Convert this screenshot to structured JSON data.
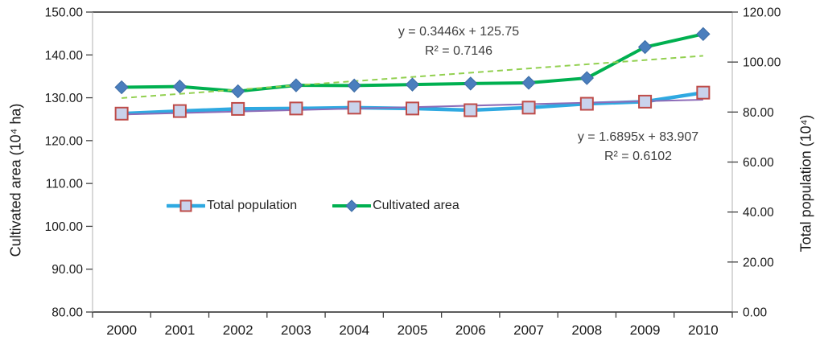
{
  "chart_data": {
    "type": "line",
    "title": "",
    "x_categories": [
      "2000",
      "2001",
      "2002",
      "2003",
      "2004",
      "2005",
      "2006",
      "2007",
      "2008",
      "2009",
      "2010"
    ],
    "left_axis": {
      "label": "Cultivated area (10⁴ ha)",
      "min": 80,
      "max": 150,
      "tick_step": 10,
      "tick_labels": [
        "150.00",
        "140.00",
        "130.00",
        "120.00",
        "110.00",
        "100.00",
        "90.00",
        "80.00"
      ]
    },
    "right_axis": {
      "label": "Total population (10⁴)",
      "min": 0,
      "max": 120,
      "tick_step": 20,
      "tick_labels": [
        "120.00",
        "100.00",
        "80.00",
        "60.00",
        "40.00",
        "20.00",
        "0.00"
      ]
    },
    "series": [
      {
        "name": "Total population",
        "axis": "left",
        "color": "#2FA9E1",
        "line_width": 4.5,
        "marker": "square",
        "marker_fill": "#C9D3EC",
        "marker_border": "#BE4B48",
        "values": [
          126.3,
          126.9,
          127.4,
          127.5,
          127.7,
          127.5,
          127.1,
          127.7,
          128.6,
          129.1,
          131.2
        ]
      },
      {
        "name": "Cultivated area",
        "axis": "right",
        "color": "#00B050",
        "line_width": 4,
        "marker": "diamond",
        "marker_fill": "#4A7EBD",
        "marker_border": "#3D6CA5",
        "values": [
          89.9,
          90.2,
          88.3,
          90.7,
          90.6,
          91.0,
          91.4,
          91.7,
          93.6,
          106.0,
          111.2
        ]
      }
    ],
    "trendlines": [
      {
        "for_series": "Total population",
        "axis": "left",
        "slope": 0.3446,
        "intercept": 125.75,
        "style": "solid",
        "color": "#8D6CB8",
        "width": 2
      },
      {
        "for_series": "Cultivated area",
        "axis": "right",
        "slope": 1.6895,
        "intercept": 83.907,
        "style": "dashed",
        "color": "#92D050",
        "width": 2
      }
    ],
    "annotations": [
      {
        "line1": "y = 0.3446x + 125.75",
        "line2": "R² = 0.7146"
      },
      {
        "line1": "y = 1.6895x + 83.907",
        "line2": "R² = 0.6102"
      }
    ],
    "legend_position": "inside-middle-left",
    "grid": "off",
    "style": {
      "background": "#FFFFFF",
      "plot_border_color": "#262626",
      "axis_line_color": "#BFBFBF",
      "tick_color": "#404040",
      "tick_label_color": "#1A1A1A",
      "annotation_color": "#3F3F3F"
    }
  }
}
